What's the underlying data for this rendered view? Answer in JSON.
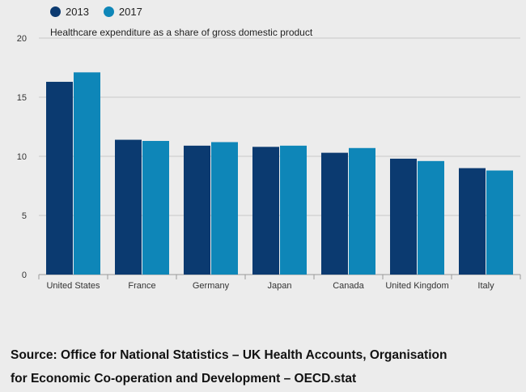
{
  "chart_data": {
    "type": "bar",
    "title": "Healthcare expenditure as a share of gross domestic product",
    "categories": [
      "United States",
      "France",
      "Germany",
      "Japan",
      "Canada",
      "United Kingdom",
      "Italy"
    ],
    "series": [
      {
        "name": "2013",
        "color": "#0b3a70",
        "values": [
          16.3,
          11.4,
          10.9,
          10.8,
          10.3,
          9.8,
          9.0
        ]
      },
      {
        "name": "2017",
        "color": "#0e86b8",
        "values": [
          17.1,
          11.3,
          11.2,
          10.9,
          10.7,
          9.6,
          8.8
        ]
      }
    ],
    "ylim": [
      0,
      20
    ],
    "yticks": [
      "0",
      "5",
      "10",
      "15",
      "20"
    ],
    "xlabel": "",
    "ylabel": "",
    "grid": true,
    "legend_position": "top-left"
  },
  "source": {
    "line1": "Source: Office for National Statistics – UK Health Accounts, Organisation",
    "line2": "for Economic Co-operation and Development – OECD.stat"
  }
}
